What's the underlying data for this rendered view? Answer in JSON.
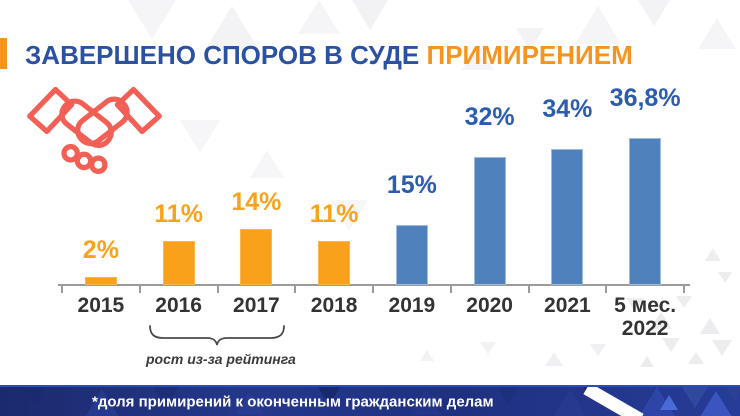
{
  "title": {
    "part1": "ЗАВЕРШЕНО СПОРОВ В СУДЕ ",
    "part2": "ПРИМИРЕНИЕМ"
  },
  "header_icon": "handshake",
  "colors": {
    "title_blue": "#2B51A3",
    "accent_orange": "#F7941D",
    "bar_orange": "#F9A11B",
    "bar_blue": "#4F81BD",
    "value_label_blue": "#2B5CAD",
    "handshake_red": "#F15F55",
    "footer_navy": "#25378C",
    "axis_gray": "#9B9B9B"
  },
  "chart_data": {
    "type": "bar",
    "title": "ЗАВЕРШЕНО СПОРОВ В СУДЕ ПРИМИРЕНИЕМ",
    "categories": [
      "2015",
      "2016",
      "2017",
      "2018",
      "2019",
      "2020",
      "2021",
      "5 мес.\n2022"
    ],
    "values": [
      2,
      11,
      14,
      11,
      15,
      32,
      34,
      36.8
    ],
    "value_labels": [
      "2%",
      "11%",
      "14%",
      "11%",
      "15%",
      "32%",
      "34%",
      "36,8%"
    ],
    "bar_colors": [
      "#F9A11B",
      "#F9A11B",
      "#F9A11B",
      "#F9A11B",
      "#4F81BD",
      "#4F81BD",
      "#4F81BD",
      "#4F81BD"
    ],
    "label_colors": [
      "#F9A21C",
      "#F9A21C",
      "#F9A21C",
      "#F9A21C",
      "#2B5CAD",
      "#2B5CAD",
      "#2B5CAD",
      "#2B5CAD"
    ],
    "unit": "percent",
    "ylim": [
      0,
      50
    ],
    "grid": false,
    "legend": false
  },
  "annotation": {
    "text": "рост из-за  рейтинга",
    "applies_to": [
      "2016",
      "2017"
    ]
  },
  "footer": {
    "note": "*доля примирений к оконченным гражданским делам"
  }
}
